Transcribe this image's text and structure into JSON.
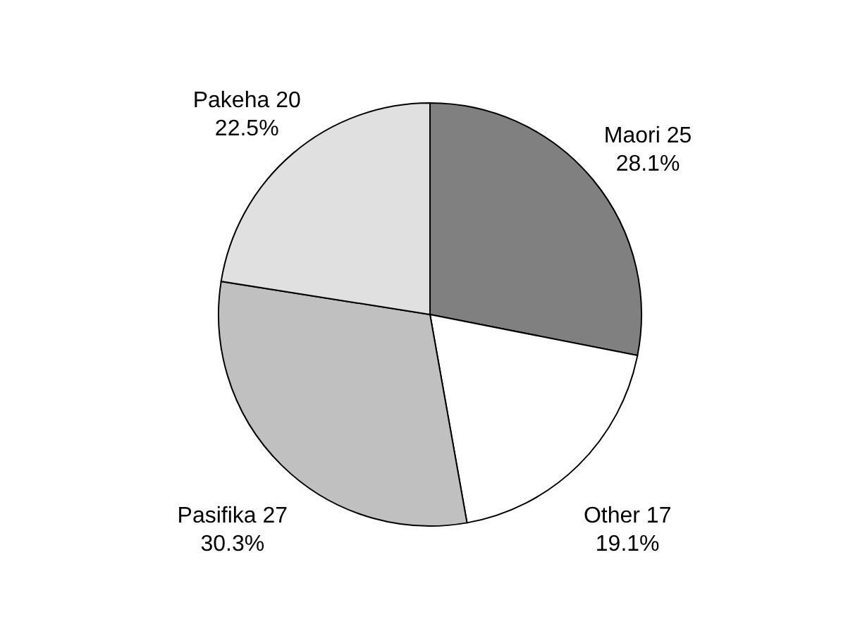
{
  "chart_data": {
    "type": "pie",
    "categories": [
      "Maori 25",
      "Other 17",
      "Pasifika 27",
      "Pakeha 20"
    ],
    "values": [
      28.1,
      19.1,
      30.3,
      22.5
    ],
    "value_labels": [
      "28.1%",
      "19.1%",
      "30.3%",
      "22.5%"
    ],
    "colors": [
      "#808080",
      "#ffffff",
      "#c0c0c0",
      "#e0e0e0"
    ]
  }
}
